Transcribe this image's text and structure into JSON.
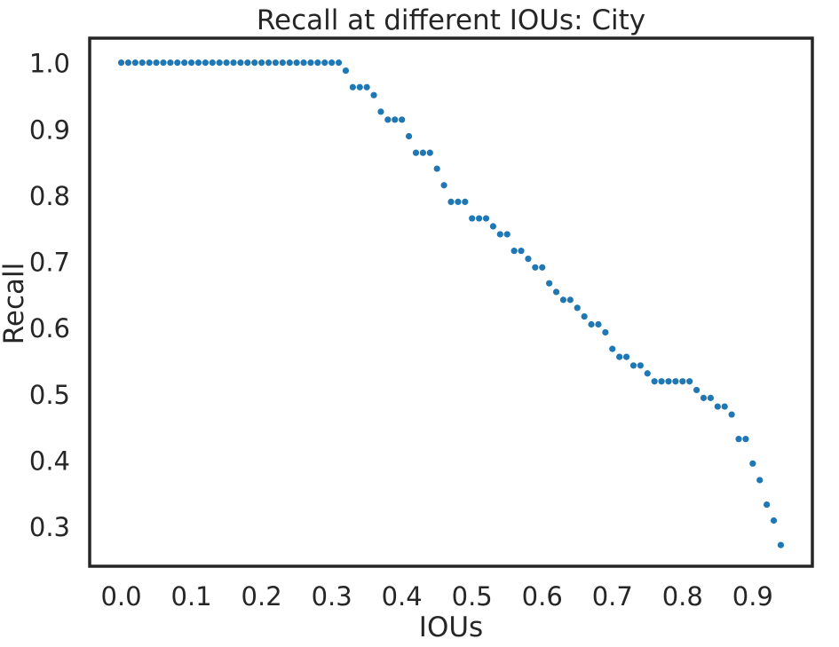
{
  "chart_data": {
    "type": "scatter",
    "title": "Recall at different IOUs: City",
    "xlabel": "IOUs",
    "ylabel": "Recall",
    "xlim": [
      -0.045,
      0.985
    ],
    "ylim": [
      0.24,
      1.037
    ],
    "xticks": [
      0.0,
      0.1,
      0.2,
      0.3,
      0.4,
      0.5,
      0.6,
      0.7,
      0.8,
      0.9
    ],
    "xtick_labels": [
      "0.0",
      "0.1",
      "0.2",
      "0.3",
      "0.4",
      "0.5",
      "0.6",
      "0.7",
      "0.8",
      "0.9"
    ],
    "yticks": [
      0.3,
      0.4,
      0.5,
      0.6,
      0.7,
      0.8,
      0.9,
      1.0
    ],
    "ytick_labels": [
      "0.3",
      "0.4",
      "0.5",
      "0.6",
      "0.7",
      "0.8",
      "0.9",
      "1.0"
    ],
    "grid": false,
    "marker_color": "#1f77b4",
    "x": [
      0.0,
      0.01,
      0.02,
      0.03,
      0.04,
      0.05,
      0.06,
      0.07,
      0.08,
      0.09,
      0.1,
      0.11,
      0.12,
      0.13,
      0.14,
      0.15,
      0.16,
      0.17,
      0.18,
      0.19,
      0.2,
      0.21,
      0.22,
      0.23,
      0.24,
      0.25,
      0.26,
      0.27,
      0.28,
      0.29,
      0.3,
      0.31,
      0.32,
      0.33,
      0.34,
      0.35,
      0.36,
      0.37,
      0.38,
      0.39,
      0.4,
      0.41,
      0.42,
      0.43,
      0.44,
      0.45,
      0.46,
      0.47,
      0.48,
      0.49,
      0.5,
      0.51,
      0.52,
      0.53,
      0.54,
      0.55,
      0.56,
      0.57,
      0.58,
      0.59,
      0.6,
      0.61,
      0.62,
      0.63,
      0.64,
      0.65,
      0.66,
      0.67,
      0.68,
      0.69,
      0.7,
      0.71,
      0.72,
      0.73,
      0.74,
      0.75,
      0.76,
      0.77,
      0.78,
      0.79,
      0.8,
      0.81,
      0.82,
      0.83,
      0.84,
      0.85,
      0.86,
      0.87,
      0.88,
      0.89,
      0.9,
      0.91,
      0.92,
      0.93,
      0.94
    ],
    "y": [
      1.0,
      1.0,
      1.0,
      1.0,
      1.0,
      1.0,
      1.0,
      1.0,
      1.0,
      1.0,
      1.0,
      1.0,
      1.0,
      1.0,
      1.0,
      1.0,
      1.0,
      1.0,
      1.0,
      1.0,
      1.0,
      1.0,
      1.0,
      1.0,
      1.0,
      1.0,
      1.0,
      1.0,
      1.0,
      1.0,
      1.0,
      1.0,
      0.988,
      0.963,
      0.963,
      0.963,
      0.951,
      0.926,
      0.914,
      0.914,
      0.914,
      0.889,
      0.864,
      0.864,
      0.864,
      0.84,
      0.815,
      0.79,
      0.79,
      0.79,
      0.765,
      0.765,
      0.765,
      0.753,
      0.741,
      0.741,
      0.716,
      0.716,
      0.704,
      0.691,
      0.691,
      0.667,
      0.654,
      0.642,
      0.642,
      0.63,
      0.617,
      0.605,
      0.605,
      0.593,
      0.568,
      0.556,
      0.556,
      0.543,
      0.543,
      0.531,
      0.519,
      0.519,
      0.519,
      0.519,
      0.519,
      0.519,
      0.506,
      0.494,
      0.494,
      0.481,
      0.481,
      0.469,
      0.432,
      0.432,
      0.395,
      0.37,
      0.333,
      0.309,
      0.272
    ]
  }
}
